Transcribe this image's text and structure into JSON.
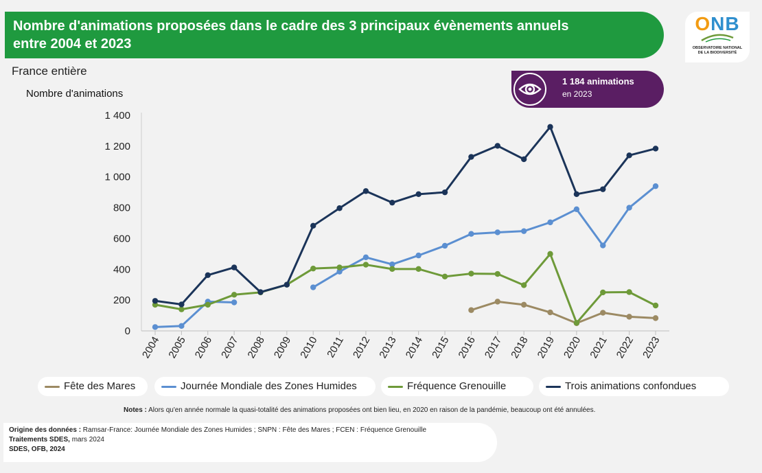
{
  "header": {
    "title_line1": "Nombre d'animations proposées dans le cadre des 3 principaux évènements annuels",
    "title_line2": "entre 2004 et 2023",
    "scope": "France entière"
  },
  "logo": {
    "letters": [
      "O",
      "N",
      "B"
    ],
    "line1": "OBSERVATOIRE NATIONAL",
    "line2": "DE LA BIODIVERSITÉ"
  },
  "badge": {
    "icon": "eye-icon",
    "value": "1 184 animations",
    "subtitle": "en 2023",
    "color": "#5a1e63"
  },
  "chart_data": {
    "type": "line",
    "ylabel": "Nombre d'animations",
    "xlabel": "",
    "ylim": [
      0,
      1400
    ],
    "yticks": [
      0,
      200,
      400,
      600,
      800,
      1000,
      1200,
      1400
    ],
    "ytick_labels": [
      "0",
      "200",
      "400",
      "600",
      "800",
      "1 000",
      "1 200",
      "1 400"
    ],
    "categories": [
      "2004",
      "2005",
      "2006",
      "2007",
      "2008",
      "2009",
      "2010",
      "2011",
      "2012",
      "2013",
      "2014",
      "2015",
      "2016",
      "2017",
      "2018",
      "2019",
      "2020",
      "2021",
      "2022",
      "2023"
    ],
    "grid": false,
    "legend_position": "bottom",
    "series": [
      {
        "name": "Fête des Mares",
        "color": "#9c8a63",
        "values": [
          null,
          null,
          null,
          null,
          null,
          null,
          null,
          null,
          null,
          null,
          null,
          null,
          135,
          190,
          170,
          120,
          50,
          118,
          92,
          83
        ]
      },
      {
        "name": "Journée Mondiale des Zones Humides",
        "color": "#5b8fd1",
        "values": [
          25,
          32,
          190,
          185,
          null,
          null,
          283,
          385,
          478,
          432,
          490,
          553,
          630,
          640,
          648,
          705,
          790,
          555,
          800,
          940
        ]
      },
      {
        "name": "Fréquence Grenouille",
        "color": "#6e9a39",
        "values": [
          170,
          140,
          170,
          235,
          250,
          300,
          405,
          412,
          430,
          402,
          402,
          353,
          372,
          370,
          297,
          500,
          52,
          250,
          252,
          165
        ]
      },
      {
        "name": "Trois animations confondues",
        "color": "#1b3459",
        "values": [
          195,
          172,
          362,
          412,
          252,
          300,
          683,
          797,
          908,
          833,
          888,
          900,
          1130,
          1202,
          1115,
          1325,
          888,
          920,
          1140,
          1184
        ]
      }
    ]
  },
  "footer": {
    "notes_label": "Notes :",
    "notes_text": " Alors qu'en année normale la quasi-totalité des animations proposées ont bien lieu, en 2020 en raison de la pandémie, beaucoup ont été annulées.",
    "source_label": "Origine des données :",
    "source_text": " Ramsar-France: Journée Mondiale des Zones Humides ; SNPN : Fête des Mares ; FCEN : Fréquence Grenouille",
    "treatment_label": "Traitements SDES,",
    "treatment_text": " mars 2024",
    "credit": "SDES, OFB, 2024"
  }
}
